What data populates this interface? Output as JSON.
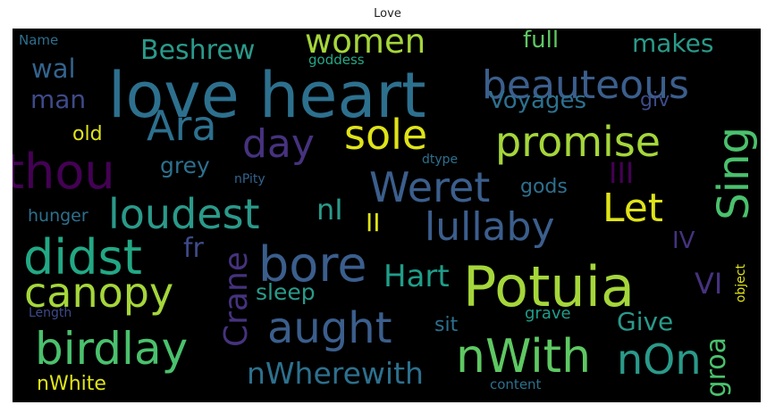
{
  "figure": {
    "title": "Love"
  },
  "words": {
    "love_heart": "love heart",
    "potuia": "Potuia",
    "beauteous": "beauteous",
    "women": "women",
    "beshrew": "Beshrew",
    "full": "full",
    "makes": "makes",
    "name": "Name",
    "goddess": "goddess",
    "wal": "wal",
    "man": "man",
    "ara": "Ara",
    "day": "day",
    "sole": "sole",
    "voyages": "Voyages",
    "giv": "giv",
    "old": "old",
    "promise": "promise",
    "sing": "Sing",
    "thou": "thou",
    "grey": "grey",
    "weret": "Weret",
    "dtype": "dtype",
    "npity": "nPity",
    "iii": "III",
    "gods": "gods",
    "loudest": "loudest",
    "ni": "nI",
    "let": "Let",
    "hunger": "hunger",
    "ii": "II",
    "lullaby": "lullaby",
    "iv": "IV",
    "didst": "didst",
    "fr": "fr",
    "bore": "bore",
    "crane": "Crane",
    "canopy": "canopy",
    "hart": "Hart",
    "vi": "VI",
    "sleep": "sleep",
    "length": "Length",
    "object": "object",
    "grave": "grave",
    "aught": "aught",
    "birdlay": "birdlay",
    "sit": "sit",
    "give": "Give",
    "nwith": "nWith",
    "non": "nOn",
    "groa": "groa",
    "nwherewith": "nWherewith",
    "nwhite": "nWhite",
    "content": "content"
  },
  "colors": {
    "background": "#000000",
    "lime": "#a5d63a",
    "yellow": "#dfe318",
    "green": "#5ec862",
    "green2": "#4ac16d",
    "teal": "#2a9a8a",
    "teal2": "#22a884",
    "teal3": "#1f9e89",
    "blue": "#33638d",
    "blue2": "#3b5e8c",
    "steel": "#2d708e",
    "navy": "#3e4a89",
    "purple": "#46327e",
    "purple2": "#440154"
  }
}
